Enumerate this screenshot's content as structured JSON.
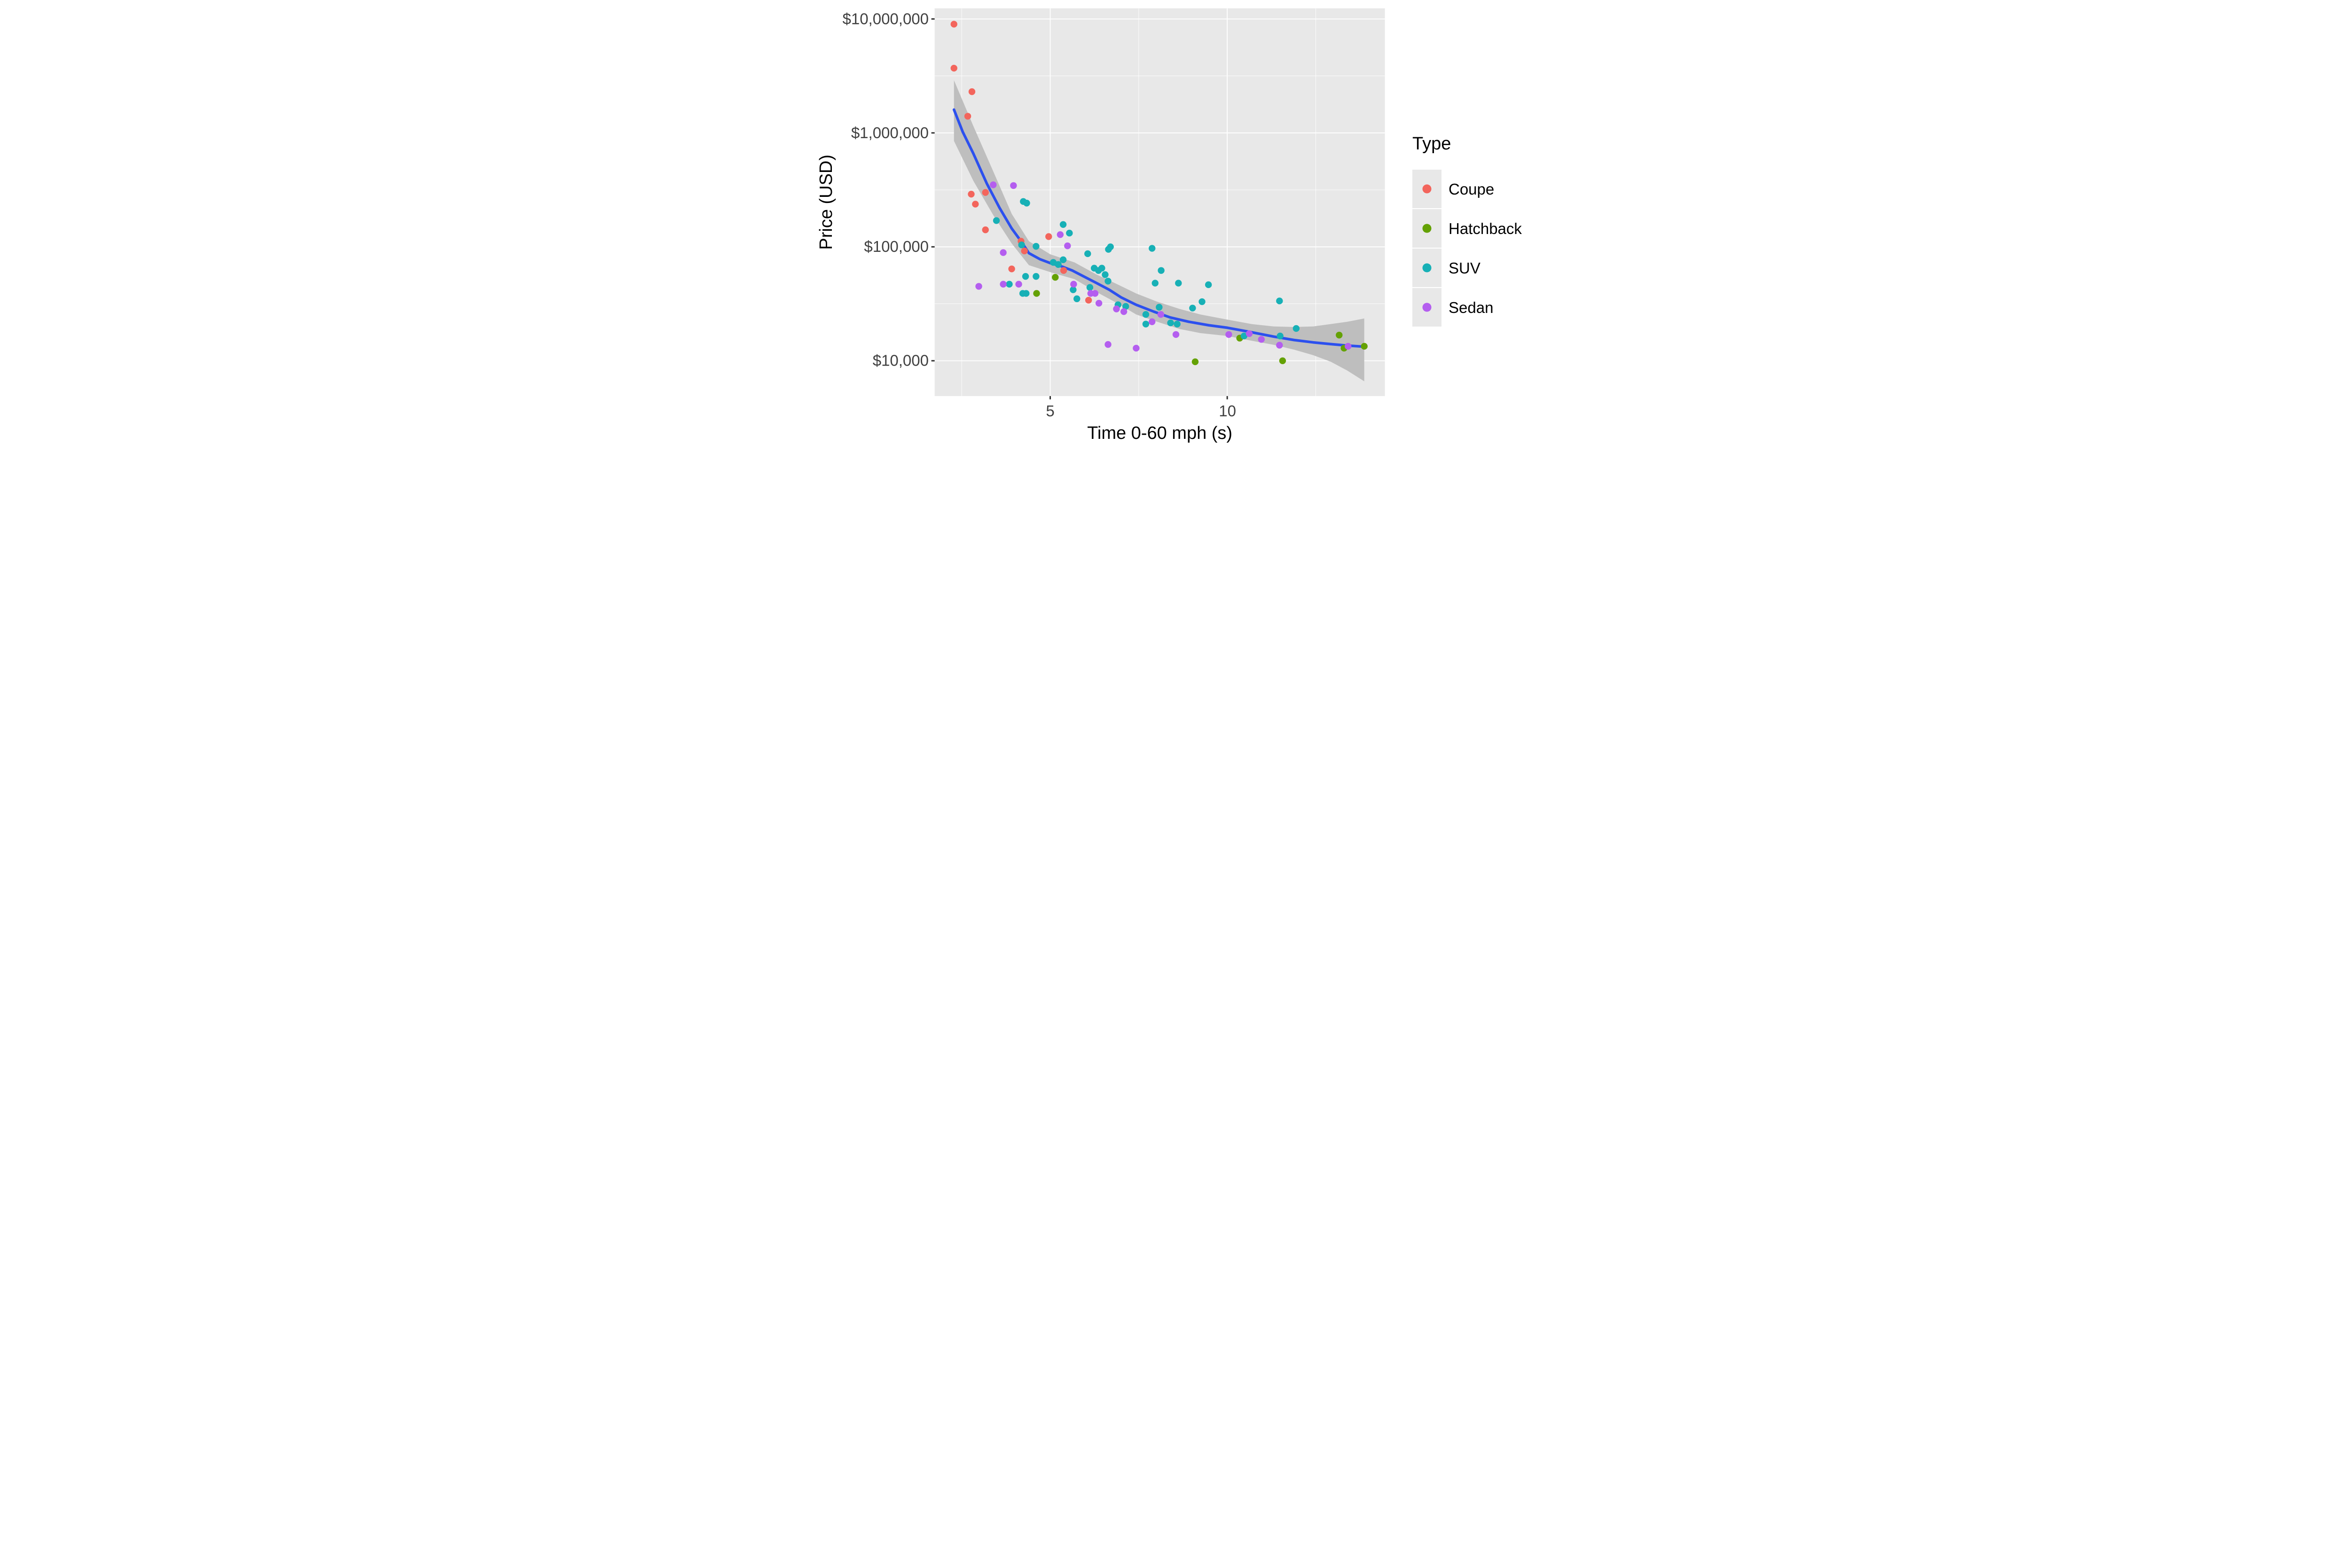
{
  "chart_data": {
    "type": "scatter",
    "title": "",
    "xlabel": "Time 0-60 mph (s)",
    "ylabel": "Price (USD)",
    "legend_title": "Type",
    "x_scale": "log10",
    "y_scale": "log10",
    "x_domain": [
      3.18,
      18.54
    ],
    "y_domain": [
      4900,
      12400000
    ],
    "x_major_ticks": [
      {
        "value": 5,
        "label": "5"
      },
      {
        "value": 10,
        "label": "10"
      }
    ],
    "x_minor_ticks": [
      3.5355,
      7.0711,
      14.142
    ],
    "y_major_ticks": [
      {
        "value": 10000000,
        "label": "$10,000,000"
      },
      {
        "value": 1000000,
        "label": "$1,000,000"
      },
      {
        "value": 100000,
        "label": "$100,000"
      },
      {
        "value": 10000,
        "label": "$10,000"
      }
    ],
    "y_minor_ticks": [
      31623,
      316230,
      3162300
    ],
    "grid": "on",
    "legend_position": "right",
    "colors": {
      "Coupe": "#F3655C",
      "Hatchback": "#64A104",
      "SUV": "#17B0B6",
      "Sedan": "#B45EEF",
      "smooth_line": "#2C50EE",
      "ci_band": "#BEBEBE",
      "panel_background": "#E8E8E8",
      "grid_line": "#FFFFFF",
      "tick_text": "#404040"
    },
    "series": [
      {
        "name": "Coupe",
        "points": [
          [
            3.43,
            9000000
          ],
          [
            3.43,
            3700000
          ],
          [
            3.68,
            2300000
          ],
          [
            3.62,
            1400000
          ],
          [
            3.67,
            290000
          ],
          [
            3.88,
            300000
          ],
          [
            3.73,
            237000
          ],
          [
            3.88,
            141000
          ],
          [
            4.97,
            123000
          ],
          [
            4.46,
            112000
          ],
          [
            4.52,
            92000
          ],
          [
            4.3,
            64000
          ],
          [
            5.27,
            62000
          ],
          [
            5.81,
            34000
          ]
        ]
      },
      {
        "name": "Hatchback",
        "points": [
          [
            4.74,
            39000
          ],
          [
            5.1,
            54000
          ],
          [
            8.82,
            9800
          ],
          [
            10.5,
            15800
          ],
          [
            12.42,
            10000
          ],
          [
            15.5,
            16800
          ],
          [
            15.8,
            12900
          ],
          [
            17.1,
            13400
          ]
        ]
      },
      {
        "name": "SUV",
        "points": [
          [
            4.5,
            250000
          ],
          [
            4.56,
            242000
          ],
          [
            4.05,
            170000
          ],
          [
            4.47,
            104000
          ],
          [
            4.73,
            101000
          ],
          [
            5.26,
            157000
          ],
          [
            5.39,
            132000
          ],
          [
            5.26,
            77000
          ],
          [
            5.06,
            73000
          ],
          [
            5.16,
            70000
          ],
          [
            4.54,
            55000
          ],
          [
            4.73,
            55000
          ],
          [
            4.26,
            47000
          ],
          [
            4.49,
            39000
          ],
          [
            4.55,
            39000
          ],
          [
            5.47,
            42000
          ],
          [
            5.55,
            35000
          ],
          [
            5.84,
            44000
          ],
          [
            5.79,
            87000
          ],
          [
            5.94,
            65000
          ],
          [
            6.04,
            62000
          ],
          [
            6.12,
            65000
          ],
          [
            6.2,
            57000
          ],
          [
            6.27,
            50000
          ],
          [
            6.28,
            95000
          ],
          [
            6.33,
            100000
          ],
          [
            7.45,
            97000
          ],
          [
            6.52,
            31000
          ],
          [
            6.72,
            30000
          ],
          [
            7.27,
            25500
          ],
          [
            7.27,
            21000
          ],
          [
            7.66,
            29500
          ],
          [
            7.72,
            62000
          ],
          [
            7.54,
            48000
          ],
          [
            8.01,
            21500
          ],
          [
            8.22,
            21000
          ],
          [
            8.26,
            48000
          ],
          [
            8.73,
            29000
          ],
          [
            9.06,
            33000
          ],
          [
            9.29,
            46500
          ],
          [
            10.68,
            16500
          ],
          [
            12.27,
            33500
          ],
          [
            12.3,
            16500
          ],
          [
            13.1,
            19200
          ]
        ]
      },
      {
        "name": "Sedan",
        "points": [
          [
            4.0,
            350000
          ],
          [
            4.33,
            345000
          ],
          [
            5.2,
            128000
          ],
          [
            5.35,
            102000
          ],
          [
            4.16,
            89000
          ],
          [
            3.78,
            45000
          ],
          [
            4.16,
            47000
          ],
          [
            4.42,
            47000
          ],
          [
            5.48,
            47000
          ],
          [
            5.86,
            39000
          ],
          [
            5.96,
            39000
          ],
          [
            6.05,
            32000
          ],
          [
            6.48,
            28500
          ],
          [
            6.67,
            27000
          ],
          [
            7.45,
            22000
          ],
          [
            7.71,
            25500
          ],
          [
            8.18,
            17000
          ],
          [
            6.27,
            13900
          ],
          [
            7.0,
            12900
          ],
          [
            10.06,
            17000
          ],
          [
            10.9,
            17300
          ],
          [
            11.43,
            15400
          ],
          [
            12.27,
            13700
          ],
          [
            16.05,
            13400
          ]
        ]
      }
    ],
    "smooth_line": [
      [
        3.43,
        1600000
      ],
      [
        3.55,
        1020000
      ],
      [
        3.7,
        660000
      ],
      [
        3.9,
        360000
      ],
      [
        4.1,
        220000
      ],
      [
        4.3,
        145000
      ],
      [
        4.46,
        112000
      ],
      [
        4.6,
        88000
      ],
      [
        4.8,
        78000
      ],
      [
        5.0,
        72000
      ],
      [
        5.2,
        68000
      ],
      [
        5.45,
        62000
      ],
      [
        5.7,
        55000
      ],
      [
        6.0,
        48000
      ],
      [
        6.3,
        42000
      ],
      [
        6.6,
        36000
      ],
      [
        7.0,
        31000
      ],
      [
        7.5,
        27000
      ],
      [
        8.0,
        24000
      ],
      [
        8.6,
        22000
      ],
      [
        9.3,
        20500
      ],
      [
        10.0,
        19500
      ],
      [
        11.0,
        17800
      ],
      [
        12.0,
        16300
      ],
      [
        13.0,
        15200
      ],
      [
        14.0,
        14500
      ],
      [
        15.0,
        14000
      ],
      [
        16.0,
        13600
      ],
      [
        17.1,
        13300
      ]
    ],
    "ci_band": [
      {
        "x": 3.43,
        "upper": 2900000,
        "lower": 850000
      },
      {
        "x": 3.7,
        "upper": 1150000,
        "lower": 380000
      },
      {
        "x": 4.0,
        "upper": 460000,
        "lower": 190000
      },
      {
        "x": 4.3,
        "upper": 195000,
        "lower": 107000
      },
      {
        "x": 4.6,
        "upper": 112000,
        "lower": 69000
      },
      {
        "x": 5.0,
        "upper": 86000,
        "lower": 60000
      },
      {
        "x": 5.5,
        "upper": 73000,
        "lower": 52000
      },
      {
        "x": 6.0,
        "upper": 57000,
        "lower": 40000
      },
      {
        "x": 6.5,
        "upper": 47000,
        "lower": 32000
      },
      {
        "x": 7.0,
        "upper": 39000,
        "lower": 25500
      },
      {
        "x": 7.6,
        "upper": 33000,
        "lower": 22000
      },
      {
        "x": 8.3,
        "upper": 28500,
        "lower": 19000
      },
      {
        "x": 9.0,
        "upper": 25500,
        "lower": 17500
      },
      {
        "x": 10.0,
        "upper": 23000,
        "lower": 16500
      },
      {
        "x": 11.0,
        "upper": 21000,
        "lower": 15000
      },
      {
        "x": 12.0,
        "upper": 20000,
        "lower": 13800
      },
      {
        "x": 13.0,
        "upper": 19800,
        "lower": 12500
      },
      {
        "x": 14.0,
        "upper": 20000,
        "lower": 11200
      },
      {
        "x": 15.0,
        "upper": 21000,
        "lower": 9800
      },
      {
        "x": 16.0,
        "upper": 22000,
        "lower": 8200
      },
      {
        "x": 17.1,
        "upper": 23500,
        "lower": 6600
      }
    ],
    "legend_entries": [
      {
        "label": "Coupe"
      },
      {
        "label": "Hatchback"
      },
      {
        "label": "SUV"
      },
      {
        "label": "Sedan"
      }
    ]
  }
}
